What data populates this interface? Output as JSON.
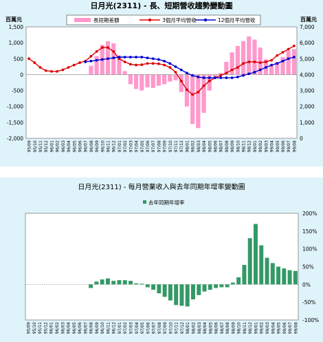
{
  "chart_data": [
    {
      "type": "bar+line",
      "title": "日月光(2311) - 長、短期營收趨勢變動圖",
      "ylabel_left": "百萬元",
      "ylabel_right": "百萬元",
      "ylim_left": [
        -2000,
        1500
      ],
      "ylim_right": [
        0,
        7000
      ],
      "yticks_left": [
        "1,500",
        "1,000",
        "500",
        "0",
        "-500",
        "-1,000",
        "-1,500",
        "-2,000"
      ],
      "yticks_right": [
        "7,000",
        "6,000",
        "5,000",
        "4,000",
        "3,000",
        "2,000",
        "1,000",
        "0"
      ],
      "x": [
        "95/09",
        "95/10",
        "95/11",
        "95/12",
        "96/01",
        "96/02",
        "96/03",
        "96/04",
        "96/05",
        "96/06",
        "96/07",
        "96/08",
        "96/09",
        "96/10",
        "96/11",
        "96/12",
        "97/01",
        "97/02",
        "97/03",
        "97/04",
        "97/05",
        "97/06",
        "97/07",
        "97/08",
        "97/09",
        "97/10",
        "97/11",
        "97/12",
        "98/01",
        "98/02",
        "98/03",
        "98/04",
        "98/05",
        "98/06",
        "98/07",
        "98/08",
        "98/09",
        "98/10",
        "98/11",
        "98/12",
        "99/01",
        "99/02",
        "99/03",
        "99/04",
        "99/05",
        "99/06",
        "99/07",
        "99/08"
      ],
      "legend": [
        "長短期差額",
        "3個月平均營收",
        "12個月平均營收"
      ],
      "colors": {
        "bar": "#ff99cc",
        "line3": "#dd0000",
        "line12": "#0000cc"
      },
      "series": [
        {
          "name": "長短期差額",
          "kind": "bar",
          "axis": "left",
          "values": [
            null,
            null,
            null,
            null,
            null,
            null,
            null,
            null,
            null,
            null,
            null,
            280,
            580,
            930,
            1050,
            980,
            600,
            110,
            -300,
            -450,
            -500,
            -400,
            -420,
            -350,
            -300,
            -220,
            -180,
            -550,
            -1000,
            -1550,
            -1680,
            -1200,
            -500,
            -100,
            50,
            400,
            700,
            900,
            1050,
            1200,
            1100,
            850,
            480,
            300,
            400,
            550,
            750,
            800
          ]
        },
        {
          "name": "3個月平均營收",
          "kind": "line",
          "axis": "right",
          "values": [
            5000,
            4750,
            4450,
            4250,
            4200,
            4200,
            4300,
            4450,
            4600,
            4750,
            4850,
            5150,
            5450,
            5700,
            5700,
            5450,
            5000,
            4800,
            4650,
            4600,
            4620,
            4700,
            4700,
            4680,
            4600,
            4450,
            4150,
            3600,
            3050,
            2750,
            2900,
            3300,
            3600,
            3800,
            3950,
            4100,
            4300,
            4450,
            4700,
            4800,
            4800,
            4750,
            4800,
            4900,
            5200,
            5400,
            5600,
            5800
          ]
        },
        {
          "name": "12個月平均營收",
          "kind": "line",
          "axis": "right",
          "values": [
            null,
            null,
            null,
            null,
            null,
            null,
            null,
            null,
            null,
            null,
            4800,
            4850,
            4900,
            4950,
            5000,
            5050,
            5100,
            5100,
            5100,
            5100,
            5100,
            5050,
            5000,
            4950,
            4850,
            4700,
            4500,
            4300,
            4100,
            3950,
            3850,
            3800,
            3800,
            3800,
            3800,
            3800,
            3800,
            3850,
            3950,
            4050,
            4150,
            4300,
            4450,
            4600,
            4700,
            4850,
            5000,
            5100
          ]
        }
      ]
    },
    {
      "type": "bar",
      "title": "日月光(2311) - 每月營業收入與去年同期年增率變動圖",
      "legend": [
        "去年同期年增率"
      ],
      "colors": {
        "bar": "#339966"
      },
      "ylim": [
        -100,
        200
      ],
      "yticks": [
        "200%",
        "150%",
        "100%",
        "50%",
        "0%",
        "-50%",
        "-100%"
      ],
      "x": [
        "95/09",
        "95/10",
        "95/11",
        "95/12",
        "96/01",
        "96/02",
        "96/03",
        "96/04",
        "96/05",
        "96/06",
        "96/07",
        "96/08",
        "96/09",
        "96/10",
        "96/11",
        "96/12",
        "97/01",
        "97/02",
        "97/03",
        "97/04",
        "97/05",
        "97/06",
        "97/07",
        "97/08",
        "97/09",
        "97/10",
        "97/11",
        "97/12",
        "98/01",
        "98/02",
        "98/03",
        "98/04",
        "98/05",
        "98/06",
        "98/07",
        "98/08",
        "98/09",
        "98/10",
        "98/11",
        "98/12",
        "99/01",
        "99/02",
        "99/03",
        "99/04",
        "99/05",
        "99/06",
        "99/07",
        "99/08"
      ],
      "series": [
        {
          "name": "去年同期年增率",
          "values": [
            null,
            null,
            null,
            null,
            null,
            null,
            null,
            null,
            null,
            null,
            null,
            -10,
            8,
            14,
            17,
            10,
            12,
            12,
            10,
            3,
            2,
            -8,
            -15,
            -25,
            -35,
            -45,
            -58,
            -60,
            -62,
            -42,
            -30,
            -20,
            -15,
            -10,
            -8,
            -8,
            5,
            20,
            55,
            130,
            170,
            110,
            75,
            60,
            50,
            45,
            40,
            38
          ]
        }
      ]
    }
  ]
}
